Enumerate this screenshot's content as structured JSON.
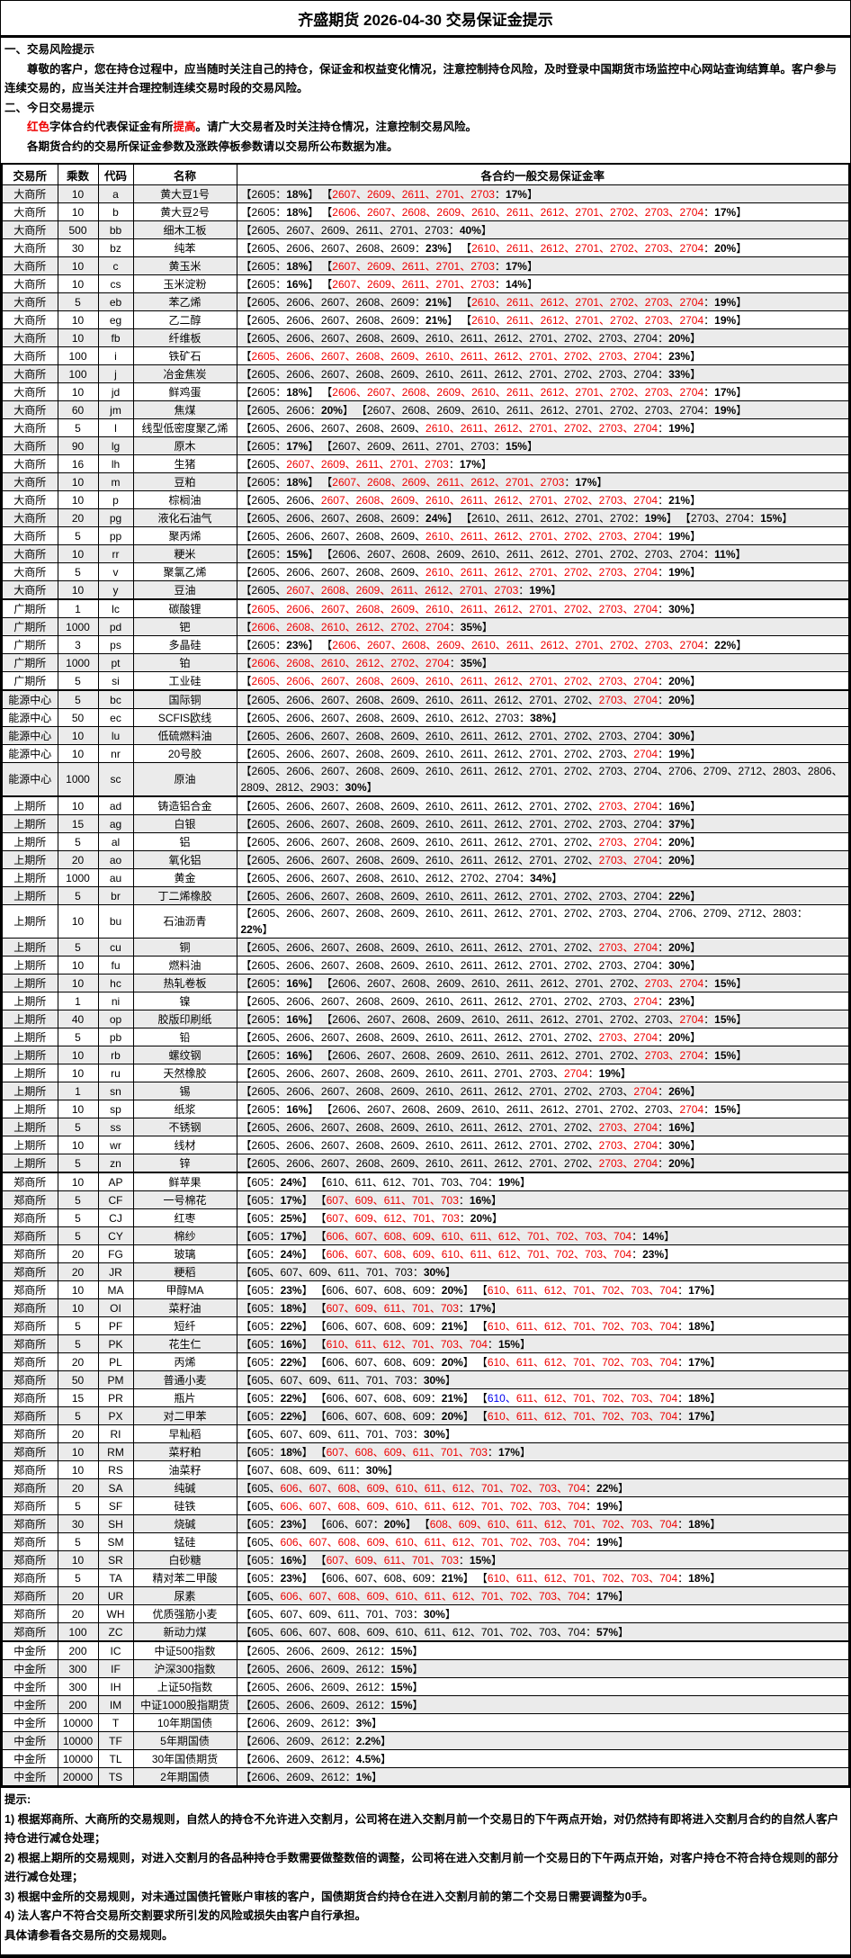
{
  "title": "齐盛期货 2026-04-30 交易保证金提示",
  "intro": {
    "s1_heading": "一、交易风险提示",
    "s1_text": "尊敬的客户，您在持仓过程中，应当随时关注自己的持仓，保证金和权益变化情况，注意控制持仓风险，及时登录中国期货市场监控中心网站查询结算单。客户参与连续交易的，应当关注并合理控制连续交易时段的交易风险。",
    "s2_heading": "二、今日交易提示",
    "s2_red1": "红色",
    "s2_mid": "字体合约代表保证金有所",
    "s2_red2": "提高",
    "s2_tail": "。请广大交易者及时关注持仓情况，注意控制交易风险。",
    "s3_text": "各期货合约的交易所保证金参数及涨跌停板参数请以交易所公布数据为准。"
  },
  "colors": {
    "red": "#ee0000",
    "blue": "#0000ee",
    "stripe": "#ebebeb"
  },
  "legend_margin_encoding": "m = bracket groups; contracts separated by spaces; prefix * = shown in red, ^ = shown in blue; text after | is the bold margin rate",
  "table": {
    "headers": [
      "交易所",
      "乘数",
      "代码",
      "名称",
      "各合约一般交易保证金率"
    ],
    "rows": [
      {
        "ex": "大商所",
        "mult": "10",
        "code": "a",
        "name": "黄大豆1号",
        "m": [
          "2605|18%",
          "*2607 *2609 *2611 *2701 *2703|17%"
        ]
      },
      {
        "ex": "大商所",
        "mult": "10",
        "code": "b",
        "name": "黄大豆2号",
        "m": [
          "2605|18%",
          "*2606 *2607 *2608 *2609 *2610 *2611 *2612 *2701 *2702 *2703 *2704|17%"
        ]
      },
      {
        "ex": "大商所",
        "mult": "500",
        "code": "bb",
        "name": "细木工板",
        "m": [
          "2605 2607 2609 2611 2701 2703|40%"
        ]
      },
      {
        "ex": "大商所",
        "mult": "30",
        "code": "bz",
        "name": "纯苯",
        "m": [
          "2605 2606 2607 2608 2609|23%",
          "*2610 *2611 *2612 *2701 *2702 *2703 *2704|20%"
        ]
      },
      {
        "ex": "大商所",
        "mult": "10",
        "code": "c",
        "name": "黄玉米",
        "m": [
          "2605|18%",
          "*2607 *2609 *2611 *2701 *2703|17%"
        ]
      },
      {
        "ex": "大商所",
        "mult": "10",
        "code": "cs",
        "name": "玉米淀粉",
        "m": [
          "2605|16%",
          "*2607 *2609 *2611 *2701 *2703|14%"
        ]
      },
      {
        "ex": "大商所",
        "mult": "5",
        "code": "eb",
        "name": "苯乙烯",
        "m": [
          "2605 2606 2607 2608 2609|21%",
          "*2610 *2611 *2612 *2701 *2702 *2703 *2704|19%"
        ]
      },
      {
        "ex": "大商所",
        "mult": "10",
        "code": "eg",
        "name": "乙二醇",
        "m": [
          "2605 2606 2607 2608 2609|21%",
          "*2610 *2611 *2612 *2701 *2702 *2703 *2704|19%"
        ]
      },
      {
        "ex": "大商所",
        "mult": "10",
        "code": "fb",
        "name": "纤维板",
        "m": [
          "2605 2606 2607 2608 2609 2610 2611 2612 2701 2702 2703 2704|20%"
        ]
      },
      {
        "ex": "大商所",
        "mult": "100",
        "code": "i",
        "name": "铁矿石",
        "m": [
          "*2605 *2606 *2607 *2608 *2609 *2610 *2611 *2612 *2701 *2702 *2703 *2704|23%"
        ]
      },
      {
        "ex": "大商所",
        "mult": "100",
        "code": "j",
        "name": "冶金焦炭",
        "m": [
          "2605 2606 2607 2608 2609 2610 2611 2612 2701 2702 2703 2704|33%"
        ]
      },
      {
        "ex": "大商所",
        "mult": "10",
        "code": "jd",
        "name": "鲜鸡蛋",
        "m": [
          "2605|18%",
          "*2606 *2607 *2608 *2609 *2610 *2611 *2612 *2701 *2702 *2703 *2704|17%"
        ]
      },
      {
        "ex": "大商所",
        "mult": "60",
        "code": "jm",
        "name": "焦煤",
        "m": [
          "2605 2606|20%",
          "2607 2608 2609 2610 2611 2612 2701 2702 2703 2704|19%"
        ]
      },
      {
        "ex": "大商所",
        "mult": "5",
        "code": "l",
        "name": "线型低密度聚乙烯",
        "m": [
          "2605 2606 2607 2608 2609 *2610 *2611 *2612 *2701 *2702 *2703 *2704|19%"
        ]
      },
      {
        "ex": "大商所",
        "mult": "90",
        "code": "lg",
        "name": "原木",
        "m": [
          "2605|17%",
          "2607 2609 2611 2701 2703|15%"
        ]
      },
      {
        "ex": "大商所",
        "mult": "16",
        "code": "lh",
        "name": "生猪",
        "m": [
          "2605 *2607 *2609 *2611 *2701 *2703|17%"
        ]
      },
      {
        "ex": "大商所",
        "mult": "10",
        "code": "m",
        "name": "豆粕",
        "m": [
          "2605|18%",
          "*2607 *2608 *2609 *2611 *2612 *2701 *2703|17%"
        ]
      },
      {
        "ex": "大商所",
        "mult": "10",
        "code": "p",
        "name": "棕榈油",
        "m": [
          "2605 2606 *2607 *2608 *2609 *2610 *2611 *2612 *2701 *2702 *2703 *2704|21%"
        ]
      },
      {
        "ex": "大商所",
        "mult": "20",
        "code": "pg",
        "name": "液化石油气",
        "m": [
          "2605 2606 2607 2608 2609|24%",
          "2610 2611 2612 2701 2702|19%",
          "2703 2704|15%"
        ]
      },
      {
        "ex": "大商所",
        "mult": "5",
        "code": "pp",
        "name": "聚丙烯",
        "m": [
          "2605 2606 2607 2608 2609 *2610 *2611 *2612 *2701 *2702 *2703 *2704|19%"
        ]
      },
      {
        "ex": "大商所",
        "mult": "10",
        "code": "rr",
        "name": "粳米",
        "m": [
          "2605|15%",
          "2606 2607 2608 2609 2610 2611 2612 2701 2702 2703 2704|11%"
        ]
      },
      {
        "ex": "大商所",
        "mult": "5",
        "code": "v",
        "name": "聚氯乙烯",
        "m": [
          "2605 2606 2607 2608 2609 *2610 *2611 *2612 *2701 *2702 *2703 *2704|19%"
        ]
      },
      {
        "ex": "大商所",
        "mult": "10",
        "code": "y",
        "name": "豆油",
        "m": [
          "2605 *2607 *2608 *2609 *2611 *2612 *2701 *2703|19%"
        ]
      },
      {
        "ex": "广期所",
        "mult": "1",
        "code": "lc",
        "name": "碳酸锂",
        "m": [
          "*2605 *2606 *2607 *2608 *2609 *2610 *2611 *2612 *2701 *2702 *2703 *2704|30%"
        ]
      },
      {
        "ex": "广期所",
        "mult": "1000",
        "code": "pd",
        "name": "钯",
        "m": [
          "*2606 *2608 *2610 *2612 *2702 *2704|35%"
        ]
      },
      {
        "ex": "广期所",
        "mult": "3",
        "code": "ps",
        "name": "多晶硅",
        "m": [
          "2605|23%",
          "*2606 *2607 *2608 *2609 *2610 *2611 *2612 *2701 *2702 *2703 *2704|22%"
        ]
      },
      {
        "ex": "广期所",
        "mult": "1000",
        "code": "pt",
        "name": "铂",
        "m": [
          "*2606 *2608 *2610 *2612 *2702 *2704|35%"
        ]
      },
      {
        "ex": "广期所",
        "mult": "5",
        "code": "si",
        "name": "工业硅",
        "m": [
          "*2605 *2606 *2607 *2608 *2609 *2610 *2611 *2612 *2701 *2702 *2703 *2704|20%"
        ]
      },
      {
        "ex": "能源中心",
        "mult": "5",
        "code": "bc",
        "name": "国际铜",
        "m": [
          "2605 2606 2607 2608 2609 2610 2611 2612 2701 2702 *2703 *2704|20%"
        ]
      },
      {
        "ex": "能源中心",
        "mult": "50",
        "code": "ec",
        "name": "SCFIS欧线",
        "m": [
          "2605 2606 2607 2608 2609 2610 2612 2703|38%"
        ]
      },
      {
        "ex": "能源中心",
        "mult": "10",
        "code": "lu",
        "name": "低硫燃料油",
        "m": [
          "2605 2606 2607 2608 2609 2610 2611 2612 2701 2702 2703 2704|30%"
        ]
      },
      {
        "ex": "能源中心",
        "mult": "10",
        "code": "nr",
        "name": "20号胶",
        "m": [
          "2605 2606 2607 2608 2609 2610 2611 2612 2701 2702 2703 *2704|19%"
        ]
      },
      {
        "ex": "能源中心",
        "mult": "1000",
        "code": "sc",
        "name": "原油",
        "m": [
          "2605 2606 2607 2608 2609 2610 2611 2612 2701 2702 2703 2704 2706 2709 2712 2803 2806 2809 2812 2903|30%"
        ]
      },
      {
        "ex": "上期所",
        "mult": "10",
        "code": "ad",
        "name": "铸造铝合金",
        "m": [
          "2605 2606 2607 2608 2609 2610 2611 2612 2701 2702 *2703 *2704|16%"
        ]
      },
      {
        "ex": "上期所",
        "mult": "15",
        "code": "ag",
        "name": "白银",
        "m": [
          "2605 2606 2607 2608 2609 2610 2611 2612 2701 2702 2703 2704|37%"
        ]
      },
      {
        "ex": "上期所",
        "mult": "5",
        "code": "al",
        "name": "铝",
        "m": [
          "2605 2606 2607 2608 2609 2610 2611 2612 2701 2702 *2703 *2704|20%"
        ]
      },
      {
        "ex": "上期所",
        "mult": "20",
        "code": "ao",
        "name": "氧化铝",
        "m": [
          "2605 2606 2607 2608 2609 2610 2611 2612 2701 2702 *2703 *2704|20%"
        ]
      },
      {
        "ex": "上期所",
        "mult": "1000",
        "code": "au",
        "name": "黄金",
        "m": [
          "2605 2606 2607 2608 2610 2612 2702 2704|34%"
        ]
      },
      {
        "ex": "上期所",
        "mult": "5",
        "code": "br",
        "name": "丁二烯橡胶",
        "m": [
          "2605 2606 2607 2608 2609 2610 2611 2612 2701 2702 2703 2704|22%"
        ]
      },
      {
        "ex": "上期所",
        "mult": "10",
        "code": "bu",
        "name": "石油沥青",
        "m": [
          "2605 2606 2607 2608 2609 2610 2611 2612 2701 2702 2703 2704 2706 2709 2712 2803|22%"
        ]
      },
      {
        "ex": "上期所",
        "mult": "5",
        "code": "cu",
        "name": "铜",
        "m": [
          "2605 2606 2607 2608 2609 2610 2611 2612 2701 2702 *2703 *2704|20%"
        ]
      },
      {
        "ex": "上期所",
        "mult": "10",
        "code": "fu",
        "name": "燃料油",
        "m": [
          "2605 2606 2607 2608 2609 2610 2611 2612 2701 2702 2703 2704|30%"
        ]
      },
      {
        "ex": "上期所",
        "mult": "10",
        "code": "hc",
        "name": "热轧卷板",
        "m": [
          "2605|16%",
          "2606 2607 2608 2609 2610 2611 2612 2701 2702 *2703 *2704|15%"
        ]
      },
      {
        "ex": "上期所",
        "mult": "1",
        "code": "ni",
        "name": "镍",
        "m": [
          "2605 2606 2607 2608 2609 2610 2611 2612 2701 2702 2703 *2704|23%"
        ]
      },
      {
        "ex": "上期所",
        "mult": "40",
        "code": "op",
        "name": "胶版印刷纸",
        "m": [
          "2605|16%",
          "2606 2607 2608 2609 2610 2611 2612 2701 2702 2703 *2704|15%"
        ]
      },
      {
        "ex": "上期所",
        "mult": "5",
        "code": "pb",
        "name": "铅",
        "m": [
          "2605 2606 2607 2608 2609 2610 2611 2612 2701 2702 *2703 *2704|20%"
        ]
      },
      {
        "ex": "上期所",
        "mult": "10",
        "code": "rb",
        "name": "螺纹钢",
        "m": [
          "2605|16%",
          "2606 2607 2608 2609 2610 2611 2612 2701 2702 *2703 *2704|15%"
        ]
      },
      {
        "ex": "上期所",
        "mult": "10",
        "code": "ru",
        "name": "天然橡胶",
        "m": [
          "2605 2606 2607 2608 2609 2610 2611 2701 2703 *2704|19%"
        ]
      },
      {
        "ex": "上期所",
        "mult": "1",
        "code": "sn",
        "name": "锡",
        "m": [
          "2605 2606 2607 2608 2609 2610 2611 2612 2701 2702 2703 *2704|26%"
        ]
      },
      {
        "ex": "上期所",
        "mult": "10",
        "code": "sp",
        "name": "纸浆",
        "m": [
          "2605|16%",
          "2606 2607 2608 2609 2610 2611 2612 2701 2702 2703 *2704|15%"
        ]
      },
      {
        "ex": "上期所",
        "mult": "5",
        "code": "ss",
        "name": "不锈钢",
        "m": [
          "2605 2606 2607 2608 2609 2610 2611 2612 2701 2702 *2703 *2704|16%"
        ]
      },
      {
        "ex": "上期所",
        "mult": "10",
        "code": "wr",
        "name": "线材",
        "m": [
          "2605 2606 2607 2608 2609 2610 2611 2612 2701 2702 *2703 *2704|30%"
        ]
      },
      {
        "ex": "上期所",
        "mult": "5",
        "code": "zn",
        "name": "锌",
        "m": [
          "2605 2606 2607 2608 2609 2610 2611 2612 2701 2702 *2703 *2704|20%"
        ]
      },
      {
        "ex": "郑商所",
        "mult": "10",
        "code": "AP",
        "name": "鲜苹果",
        "m": [
          "605|24%",
          "610 611 612 701 703 704|19%"
        ]
      },
      {
        "ex": "郑商所",
        "mult": "5",
        "code": "CF",
        "name": "一号棉花",
        "m": [
          "605|17%",
          "*607 *609 *611 *701 *703|16%"
        ]
      },
      {
        "ex": "郑商所",
        "mult": "5",
        "code": "CJ",
        "name": "红枣",
        "m": [
          "605|25%",
          "*607 *609 *612 *701 *703|20%"
        ]
      },
      {
        "ex": "郑商所",
        "mult": "5",
        "code": "CY",
        "name": "棉纱",
        "m": [
          "605|17%",
          "*606 *607 *608 *609 *610 *611 *612 *701 *702 *703 *704|14%"
        ]
      },
      {
        "ex": "郑商所",
        "mult": "20",
        "code": "FG",
        "name": "玻璃",
        "m": [
          "605|24%",
          "*606 *607 *608 *609 *610 *611 *612 *701 *702 *703 *704|23%"
        ]
      },
      {
        "ex": "郑商所",
        "mult": "20",
        "code": "JR",
        "name": "粳稻",
        "m": [
          "605 607 609 611 701 703|30%"
        ]
      },
      {
        "ex": "郑商所",
        "mult": "10",
        "code": "MA",
        "name": "甲醇MA",
        "m": [
          "605|23%",
          "606 607 608 609|20%",
          "*610 *611 *612 *701 *702 *703 *704|17%"
        ]
      },
      {
        "ex": "郑商所",
        "mult": "10",
        "code": "OI",
        "name": "菜籽油",
        "m": [
          "605|18%",
          "*607 *609 *611 *701 *703|17%"
        ]
      },
      {
        "ex": "郑商所",
        "mult": "5",
        "code": "PF",
        "name": "短纤",
        "m": [
          "605|22%",
          "606 607 608 609|21%",
          "*610 *611 *612 *701 *702 *703 *704|18%"
        ]
      },
      {
        "ex": "郑商所",
        "mult": "5",
        "code": "PK",
        "name": "花生仁",
        "m": [
          "605|16%",
          "*610 *611 *612 *701 *703 *704|15%"
        ]
      },
      {
        "ex": "郑商所",
        "mult": "20",
        "code": "PL",
        "name": "丙烯",
        "m": [
          "605|22%",
          "606 607 608 609|20%",
          "*610 *611 *612 *701 *702 *703 *704|17%"
        ]
      },
      {
        "ex": "郑商所",
        "mult": "50",
        "code": "PM",
        "name": "普通小麦",
        "m": [
          "605 607 609 611 701 703|30%"
        ]
      },
      {
        "ex": "郑商所",
        "mult": "15",
        "code": "PR",
        "name": "瓶片",
        "m": [
          "605|22%",
          "606 607 608 609|21%",
          "^610 *611 *612 *701 *702 *703 *704|18%"
        ]
      },
      {
        "ex": "郑商所",
        "mult": "5",
        "code": "PX",
        "name": "对二甲苯",
        "m": [
          "605|22%",
          "606 607 608 609|20%",
          "*610 *611 *612 *701 *702 *703 *704|17%"
        ]
      },
      {
        "ex": "郑商所",
        "mult": "20",
        "code": "RI",
        "name": "早籼稻",
        "m": [
          "605 607 609 611 701 703|30%"
        ]
      },
      {
        "ex": "郑商所",
        "mult": "10",
        "code": "RM",
        "name": "菜籽粕",
        "m": [
          "605|18%",
          "*607 *608 *609 *611 *701 *703|17%"
        ]
      },
      {
        "ex": "郑商所",
        "mult": "10",
        "code": "RS",
        "name": "油菜籽",
        "m": [
          "607 608 609 611|30%"
        ]
      },
      {
        "ex": "郑商所",
        "mult": "20",
        "code": "SA",
        "name": "纯碱",
        "m": [
          "605 *606 *607 *608 *609 *610 *611 *612 *701 *702 *703 *704|22%"
        ]
      },
      {
        "ex": "郑商所",
        "mult": "5",
        "code": "SF",
        "name": "硅铁",
        "m": [
          "605 *606 *607 *608 *609 *610 *611 *612 *701 *702 *703 *704|19%"
        ]
      },
      {
        "ex": "郑商所",
        "mult": "30",
        "code": "SH",
        "name": "烧碱",
        "m": [
          "605|23%",
          "606 607|20%",
          "*608 *609 *610 *611 *612 *701 *702 *703 *704|18%"
        ]
      },
      {
        "ex": "郑商所",
        "mult": "5",
        "code": "SM",
        "name": "锰硅",
        "m": [
          "605 *606 *607 *608 *609 *610 *611 *612 *701 *702 *703 *704|19%"
        ]
      },
      {
        "ex": "郑商所",
        "mult": "10",
        "code": "SR",
        "name": "白砂糖",
        "m": [
          "605|16%",
          "*607 *609 *611 *701 *703|15%"
        ]
      },
      {
        "ex": "郑商所",
        "mult": "5",
        "code": "TA",
        "name": "精对苯二甲酸",
        "m": [
          "605|23%",
          "606 607 608 609|21%",
          "*610 *611 *612 *701 *702 *703 *704|18%"
        ]
      },
      {
        "ex": "郑商所",
        "mult": "20",
        "code": "UR",
        "name": "尿素",
        "m": [
          "605 *606 *607 *608 *609 *610 *611 *612 *701 *702 *703 *704|17%"
        ]
      },
      {
        "ex": "郑商所",
        "mult": "20",
        "code": "WH",
        "name": "优质强筋小麦",
        "m": [
          "605 607 609 611 701 703|30%"
        ]
      },
      {
        "ex": "郑商所",
        "mult": "100",
        "code": "ZC",
        "name": "新动力煤",
        "m": [
          "605 606 607 608 609 610 611 612 701 702 703 704|57%"
        ]
      },
      {
        "ex": "中金所",
        "mult": "200",
        "code": "IC",
        "name": "中证500指数",
        "m": [
          "2605 2606 2609 2612|15%"
        ]
      },
      {
        "ex": "中金所",
        "mult": "300",
        "code": "IF",
        "name": "沪深300指数",
        "m": [
          "2605 2606 2609 2612|15%"
        ]
      },
      {
        "ex": "中金所",
        "mult": "300",
        "code": "IH",
        "name": "上证50指数",
        "m": [
          "2605 2606 2609 2612|15%"
        ]
      },
      {
        "ex": "中金所",
        "mult": "200",
        "code": "IM",
        "name": "中证1000股指期货",
        "m": [
          "2605 2606 2609 2612|15%"
        ]
      },
      {
        "ex": "中金所",
        "mult": "10000",
        "code": "T",
        "name": "10年期国债",
        "m": [
          "2606 2609 2612|3%"
        ]
      },
      {
        "ex": "中金所",
        "mult": "10000",
        "code": "TF",
        "name": "5年期国债",
        "m": [
          "2606 2609 2612|2.2%"
        ]
      },
      {
        "ex": "中金所",
        "mult": "10000",
        "code": "TL",
        "name": "30年国债期货",
        "m": [
          "2606 2609 2612|4.5%"
        ]
      },
      {
        "ex": "中金所",
        "mult": "20000",
        "code": "TS",
        "name": "2年期国债",
        "m": [
          "2606 2609 2612|1%"
        ]
      }
    ]
  },
  "notes": {
    "heading": "提示:",
    "items": [
      "1) 根据郑商所、大商所的交易规则，自然人的持仓不允许进入交割月，公司将在进入交割月前一个交易日的下午两点开始，对仍然持有即将进入交割月合约的自然人客户持仓进行减仓处理；",
      "2) 根据上期所的交易规则，对进入交割月的各品种持仓手数需要做整数倍的调整，公司将在进入交割月前一个交易日的下午两点开始，对客户持仓不符合持仓规则的部分进行减仓处理；",
      "3) 根据中金所的交易规则，对未通过国债托管账户审核的客户，国债期货合约持仓在进入交割月前的第二个交易日需要调整为0手。",
      "4) 法人客户不符合交易所交割要求所引发的风险或损失由客户自行承担。"
    ],
    "footer": "具体请参看各交易所的交易规则。"
  }
}
